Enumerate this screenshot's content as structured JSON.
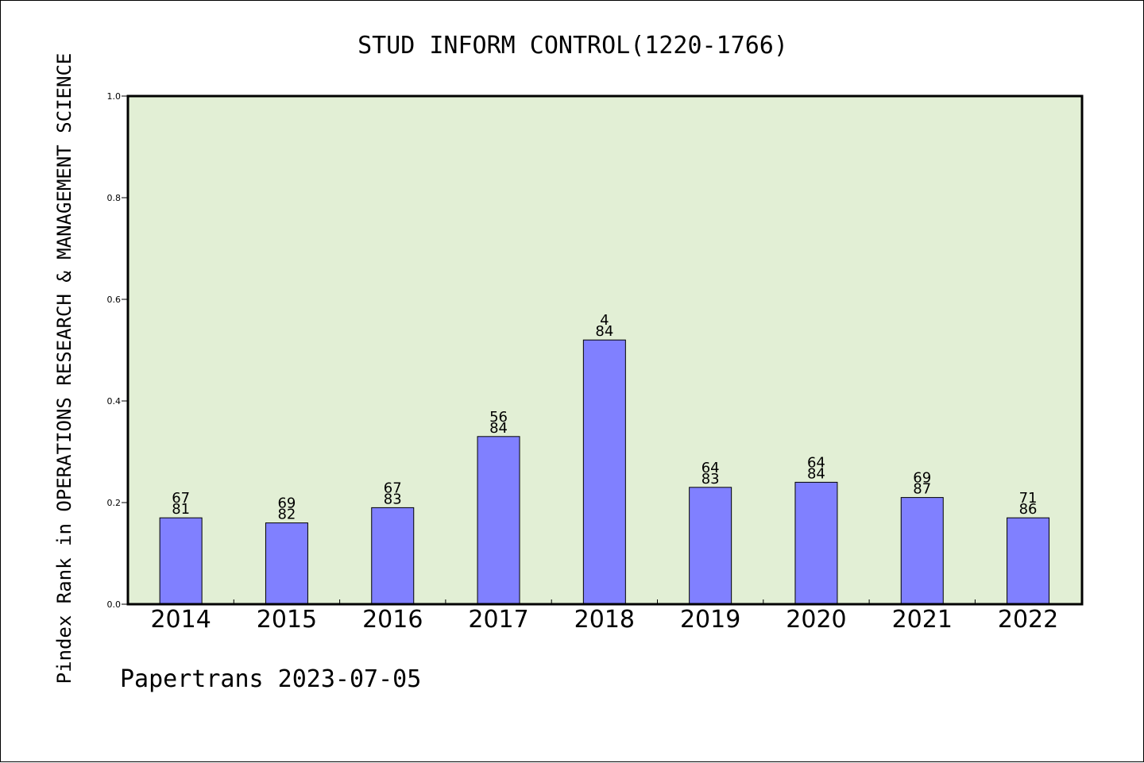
{
  "chart_data": {
    "type": "bar",
    "title": "STUD INFORM CONTROL(1220-1766)",
    "xlabel": "",
    "ylabel": "Pindex Rank in OPERATIONS RESEARCH & MANAGEMENT SCIENCE",
    "categories": [
      "2014",
      "2015",
      "2016",
      "2017",
      "2018",
      "2019",
      "2020",
      "2021",
      "2022"
    ],
    "values": [
      0.17,
      0.16,
      0.19,
      0.33,
      0.52,
      0.23,
      0.24,
      0.21,
      0.17
    ],
    "rank": [
      "67",
      "69",
      "67",
      "56",
      "4",
      "64",
      "64",
      "69",
      "71"
    ],
    "total": [
      "81",
      "82",
      "83",
      "84",
      "84",
      "83",
      "84",
      "87",
      "86"
    ],
    "ylim": [
      0,
      1.0
    ],
    "yticks": [
      "0.0",
      "0.2",
      "0.4",
      "0.6",
      "0.8",
      "1.0"
    ],
    "grid": false,
    "plot_background": "#e2efd5",
    "bar_color": "#8080ff",
    "footer": "Papertrans 2023-07-05"
  }
}
